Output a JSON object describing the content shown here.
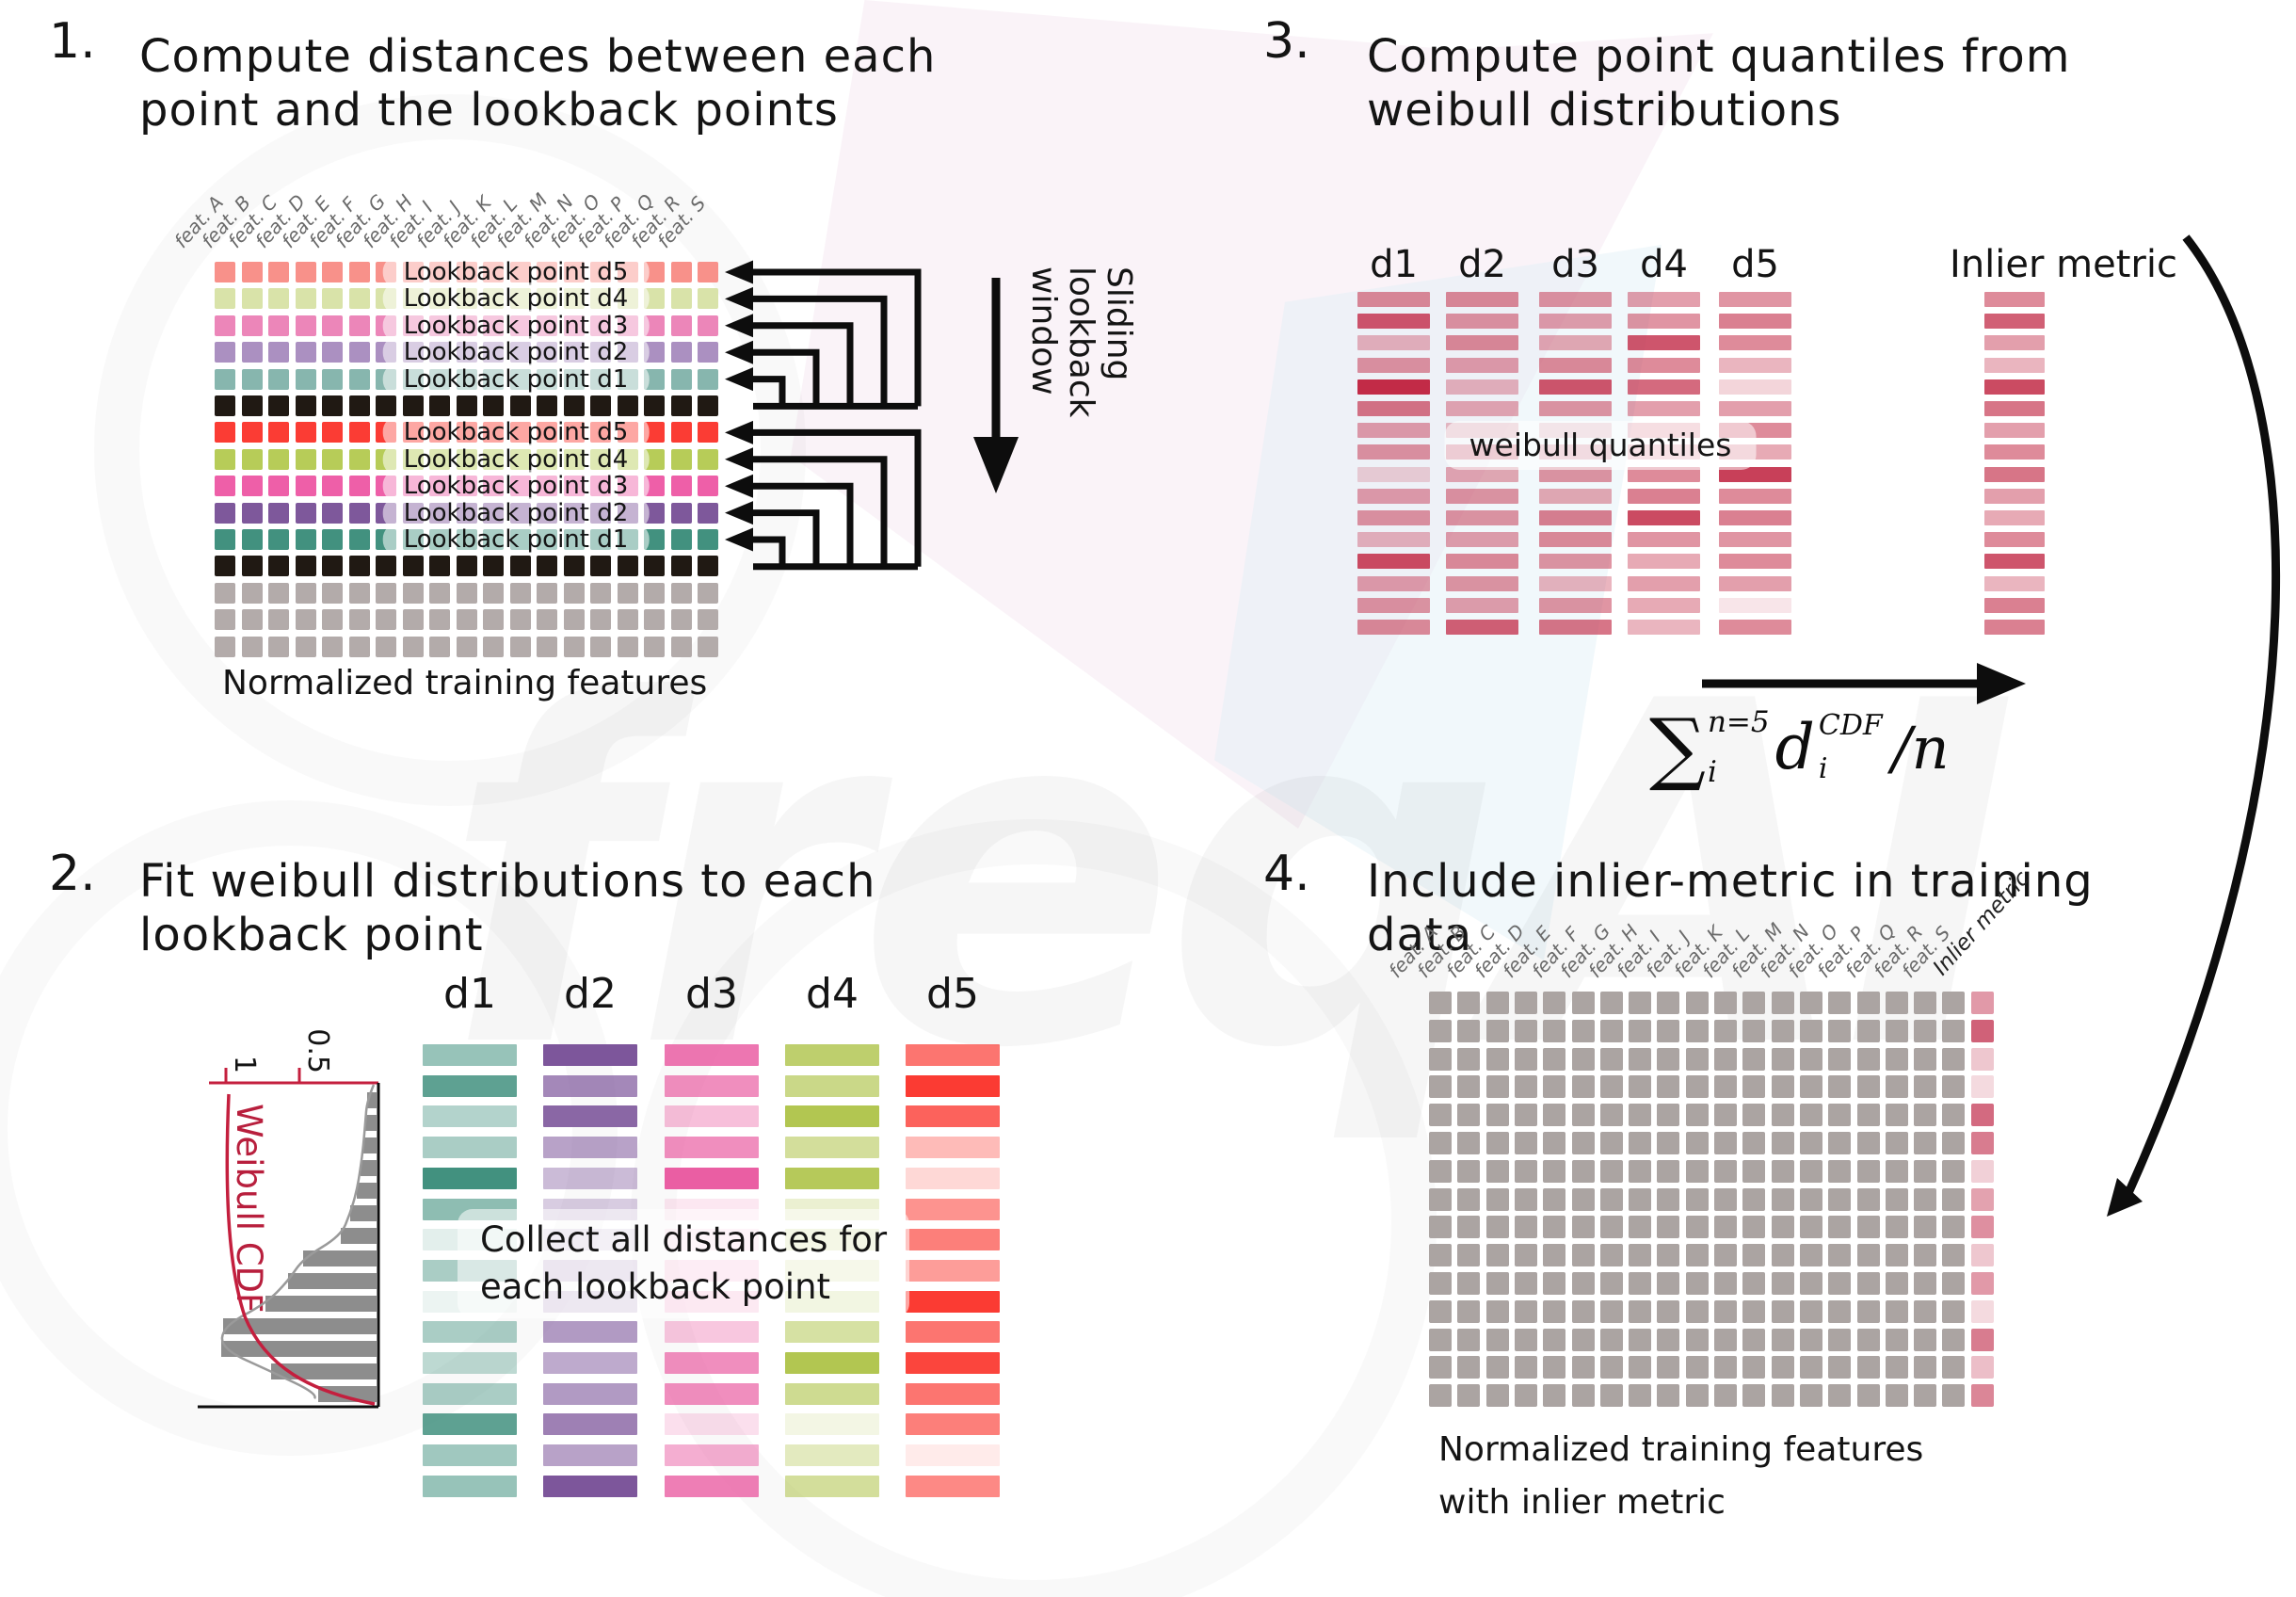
{
  "watermark": {
    "text": "freqAI"
  },
  "step1": {
    "number": "1.",
    "title_lines": [
      "Compute distances between each",
      "point and the lookback points"
    ],
    "feature_labels": [
      "feat. A",
      "feat. B",
      "feat. C",
      "feat. D",
      "feat. E",
      "feat. F",
      "feat. G",
      "feat. H",
      "feat. I",
      "feat. J",
      "feat. K",
      "feat. L",
      "feat. M",
      "feat. N",
      "feat. O",
      "feat. P",
      "feat. Q",
      "feat. R",
      "feat. S"
    ],
    "sliding_label_lines": [
      "Sliding",
      "lookback",
      "window"
    ],
    "caption": "Normalized training features",
    "rows": [
      {
        "color": "#f8918a",
        "label": "Lookback point d5"
      },
      {
        "color": "#d9e3a9",
        "label": "Lookback point d4"
      },
      {
        "color": "#ec86b9",
        "label": "Lookback point d3"
      },
      {
        "color": "#ab90c1",
        "label": "Lookback point d2"
      },
      {
        "color": "#87b6ae",
        "label": "Lookback point d1"
      },
      {
        "color": "#201913",
        "label": null
      },
      {
        "color": "#fb3c34",
        "label": "Lookback point d5"
      },
      {
        "color": "#b7cc58",
        "label": "Lookback point d4"
      },
      {
        "color": "#ee5fa8",
        "label": "Lookback point d3"
      },
      {
        "color": "#7e589b",
        "label": "Lookback point d2"
      },
      {
        "color": "#42917f",
        "label": "Lookback point d1"
      },
      {
        "color": "#201913",
        "label": null
      },
      {
        "color": "#b3abaa",
        "label": null
      },
      {
        "color": "#b3abaa",
        "label": null
      },
      {
        "color": "#b3abaa",
        "label": null
      }
    ]
  },
  "step2": {
    "number": "2.",
    "title_lines": [
      "Fit weibull distributions to each",
      "lookback point"
    ],
    "headers": [
      "d1",
      "d2",
      "d3",
      "d4",
      "d5"
    ],
    "column_colors": [
      "#42917f",
      "#7d569b",
      "#ea5ea3",
      "#aec348",
      "#fb3b33"
    ],
    "column_opacity": [
      [
        0.55,
        0.85,
        0.4,
        0.45,
        1.0,
        0.6,
        0.15,
        0.45,
        0.1,
        0.45,
        0.35,
        0.45,
        0.85,
        0.5,
        0.55
      ],
      [
        1.0,
        0.7,
        0.9,
        0.55,
        0.4,
        0.3,
        0.2,
        0.3,
        0.3,
        0.6,
        0.5,
        0.6,
        0.75,
        0.55,
        1.0
      ],
      [
        0.85,
        0.7,
        0.4,
        0.7,
        1.0,
        0.15,
        0.15,
        0.25,
        0.3,
        0.35,
        0.7,
        0.7,
        0.2,
        0.5,
        0.8
      ],
      [
        0.8,
        0.65,
        0.95,
        0.55,
        0.9,
        0.25,
        0.3,
        0.25,
        0.35,
        0.5,
        0.95,
        0.6,
        0.15,
        0.35,
        0.55
      ],
      [
        0.7,
        1.0,
        0.8,
        0.35,
        0.2,
        0.55,
        0.65,
        0.5,
        1.0,
        0.7,
        0.95,
        0.7,
        0.65,
        0.1,
        0.6
      ]
    ],
    "collect_lines": [
      "Collect all distances for",
      "each lookback point"
    ],
    "weibull": {
      "ylabel": "Weibull CDF",
      "tick_labels": [
        "1",
        "0.5"
      ],
      "bar_lengths": [
        10,
        12,
        14,
        17,
        21,
        28,
        38,
        78,
        94,
        118,
        163,
        165,
        112,
        62
      ],
      "cdf_color": "#c41f3e",
      "hist_color": "#8d8d8d"
    }
  },
  "step3": {
    "number": "3.",
    "title_lines": [
      "Compute point quantiles from",
      "weibull distributions"
    ],
    "headers": [
      "d1",
      "d2",
      "d3",
      "d4",
      "d5"
    ],
    "inlier_header": "Inlier metric",
    "pill": "weibull quantiles",
    "bar_color": "#c22b47",
    "columns": [
      [
        0.55,
        0.8,
        0.35,
        0.5,
        1.0,
        0.65,
        0.45,
        0.5,
        0.2,
        0.45,
        0.5,
        0.35,
        0.85,
        0.45,
        0.5,
        0.55
      ],
      [
        0.55,
        0.5,
        0.55,
        0.45,
        0.35,
        0.4,
        0.3,
        0.5,
        0.4,
        0.5,
        0.5,
        0.45,
        0.55,
        0.5,
        0.45,
        0.75
      ],
      [
        0.5,
        0.45,
        0.4,
        0.55,
        0.8,
        0.5,
        0.25,
        0.35,
        0.5,
        0.4,
        0.6,
        0.55,
        0.5,
        0.35,
        0.5,
        0.65
      ],
      [
        0.45,
        0.5,
        0.8,
        0.55,
        0.7,
        0.45,
        0.35,
        0.3,
        0.55,
        0.6,
        0.85,
        0.5,
        0.4,
        0.45,
        0.4,
        0.35
      ],
      [
        0.5,
        0.6,
        0.55,
        0.35,
        0.2,
        0.45,
        0.55,
        0.4,
        0.9,
        0.55,
        0.6,
        0.5,
        0.55,
        0.45,
        0.12,
        0.55
      ]
    ],
    "inlier_column": [
      0.55,
      0.75,
      0.45,
      0.35,
      0.85,
      0.65,
      0.45,
      0.55,
      0.65,
      0.45,
      0.4,
      0.55,
      0.8,
      0.35,
      0.6,
      0.6
    ],
    "formula": {
      "sum": "∑",
      "sum_sup": "n=5",
      "sum_sub": "i",
      "term": "d",
      "term_sup": "CDF",
      "term_sub": "i",
      "divisor": "/n"
    }
  },
  "step4": {
    "number": "4.",
    "title_lines": [
      "Include inlier-metric in training",
      "data"
    ],
    "feature_labels": [
      "feat. A",
      "feat. B",
      "feat. C",
      "feat. D",
      "feat. E",
      "feat. F",
      "feat. G",
      "feat. H",
      "feat. I",
      "feat. J",
      "feat. K",
      "feat. L",
      "feat. M",
      "feat. N",
      "feat. O",
      "feat. P",
      "feat. Q",
      "feat. R",
      "feat. S"
    ],
    "inlier_label": "Inlier metric",
    "cell_color": "#aba4a2",
    "inlier_color": "#c84560",
    "inlier_opacity": [
      0.55,
      0.85,
      0.3,
      0.2,
      0.8,
      0.7,
      0.25,
      0.5,
      0.6,
      0.3,
      0.55,
      0.2,
      0.7,
      0.35,
      0.65
    ],
    "caption_lines": [
      "Normalized training features",
      "with inlier metric"
    ]
  }
}
